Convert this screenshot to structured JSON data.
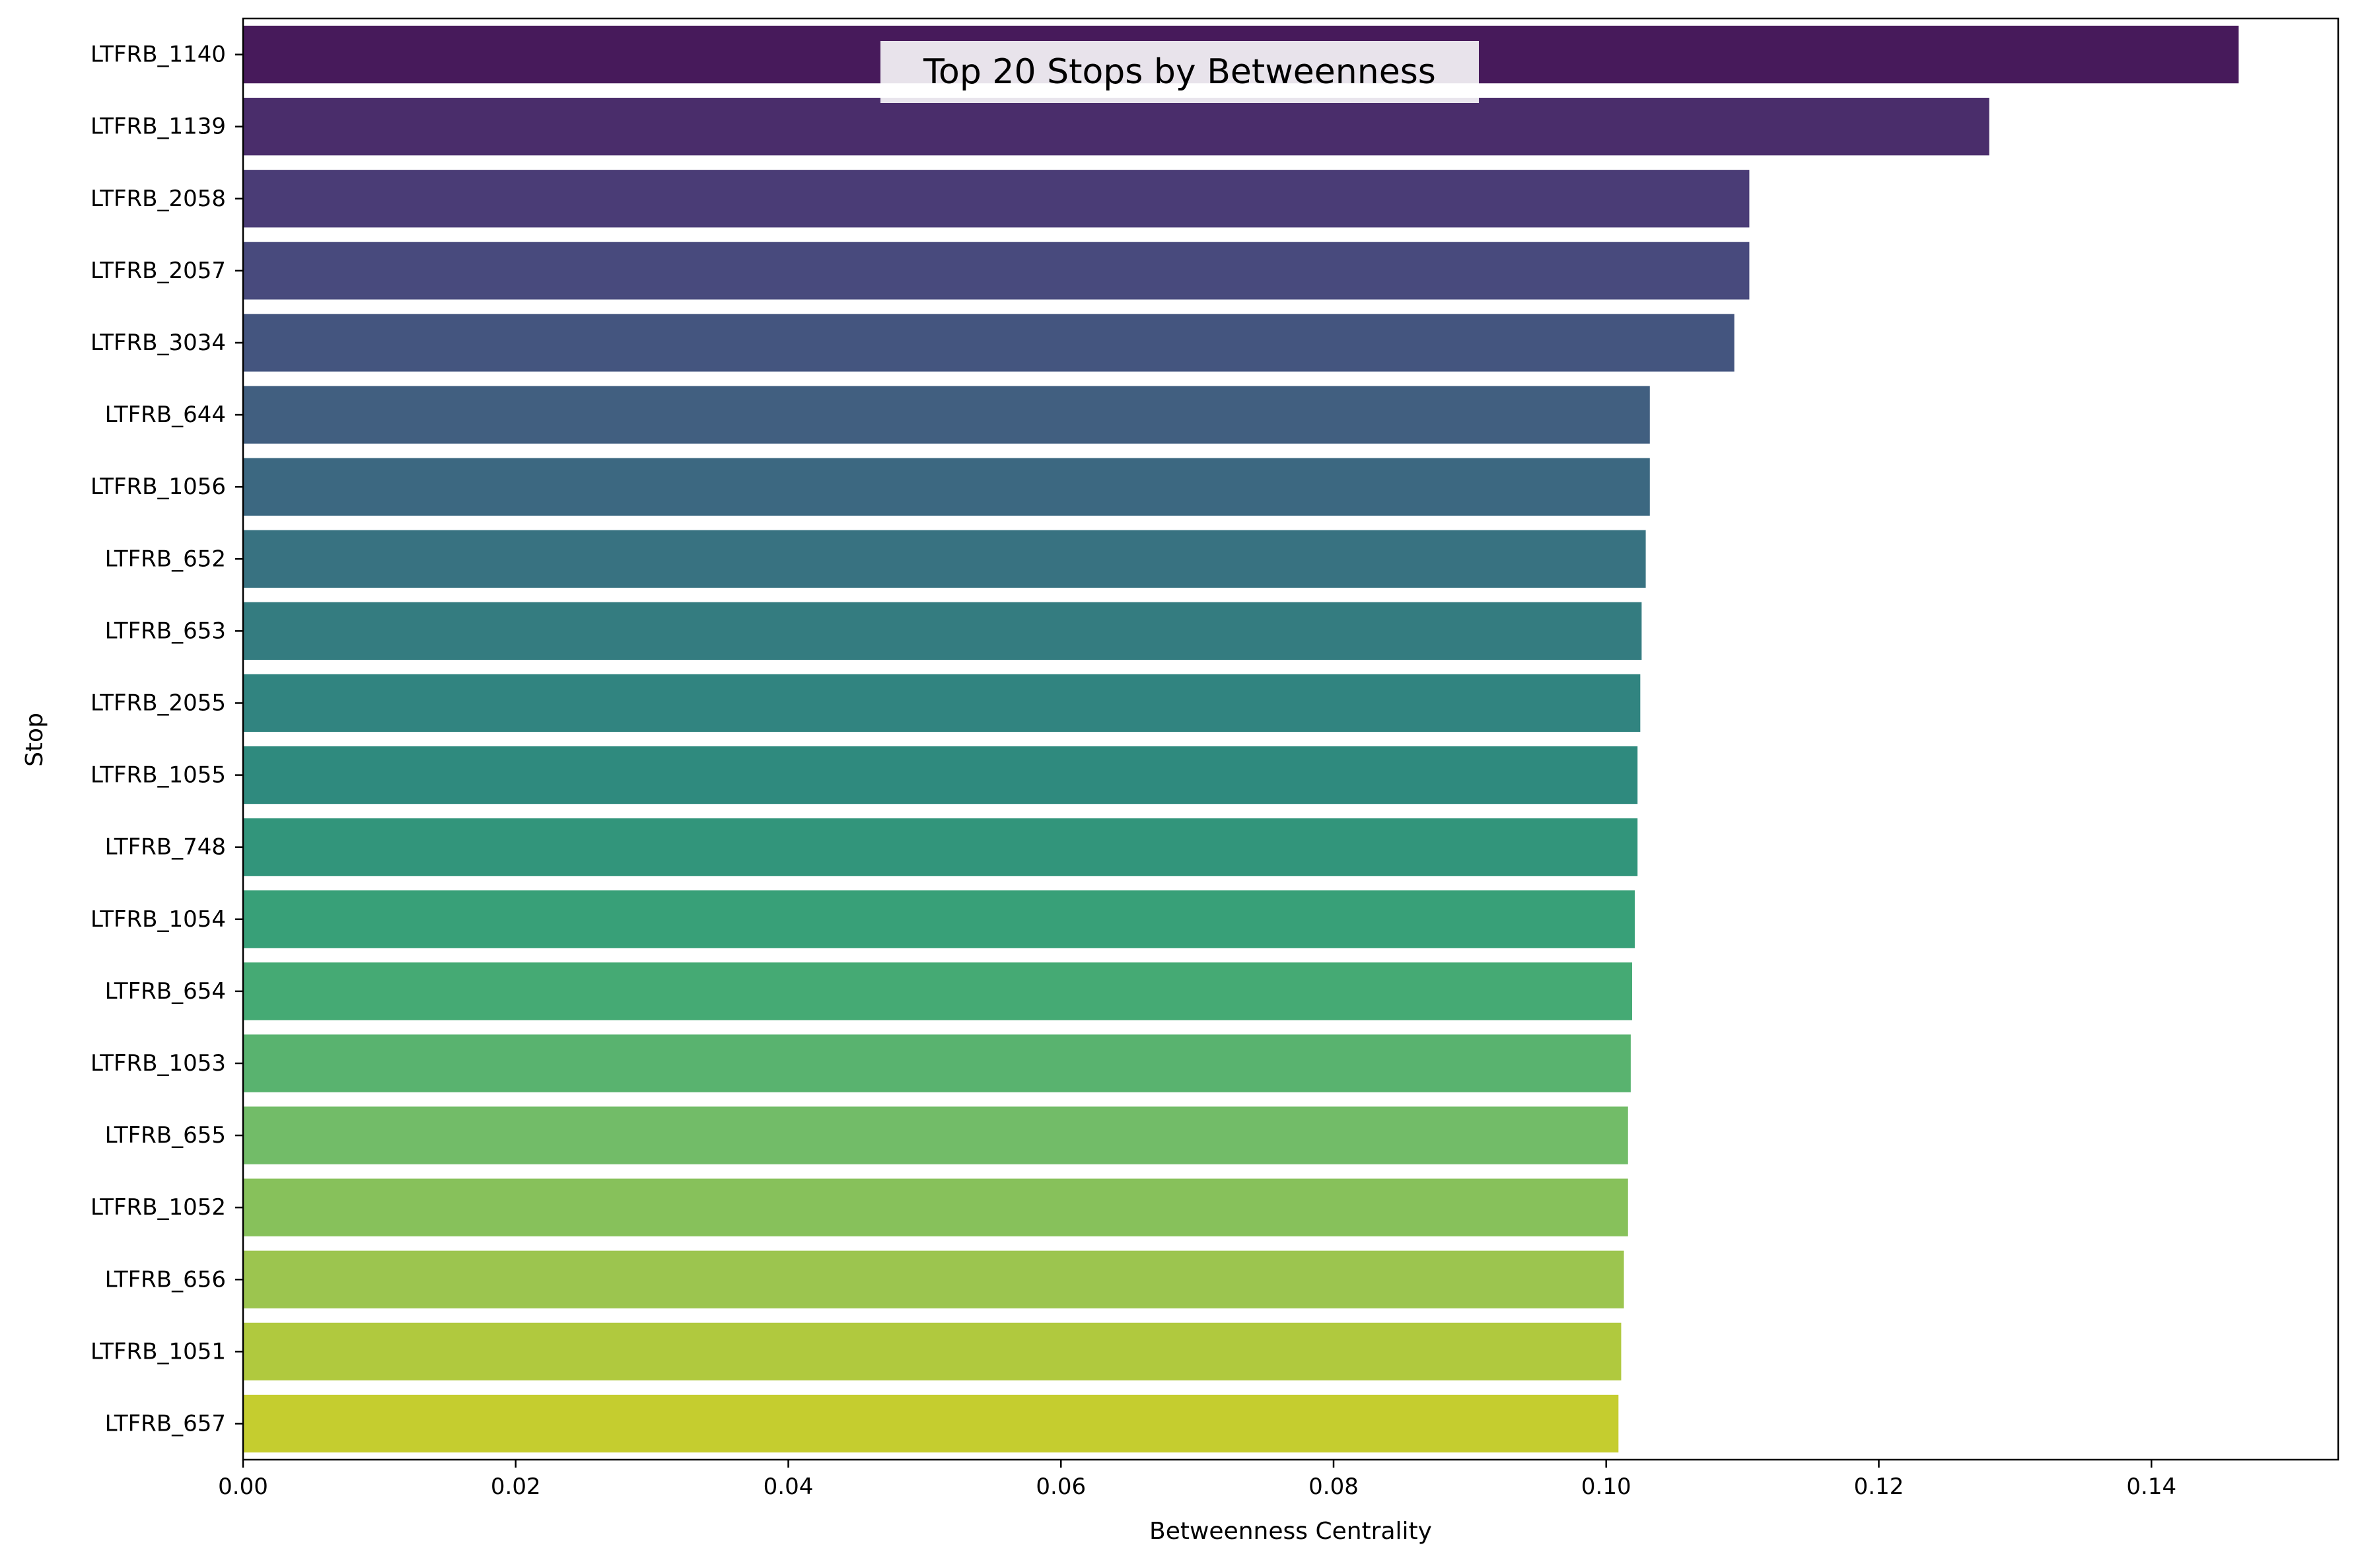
{
  "chart_data": {
    "type": "bar",
    "orientation": "horizontal",
    "title": "Top 20 Stops by Betweenness",
    "xlabel": "Betweenness Centrality",
    "ylabel": "Stop",
    "xlim": [
      0,
      0.1537
    ],
    "xticks": [
      "0.00",
      "0.02",
      "0.04",
      "0.06",
      "0.08",
      "0.10",
      "0.12",
      "0.14"
    ],
    "grid": false,
    "legend": "none",
    "palette": "viridis",
    "categories": [
      "LTFRB_1140",
      "LTFRB_1139",
      "LTFRB_2058",
      "LTFRB_2057",
      "LTFRB_3034",
      "LTFRB_644",
      "LTFRB_1056",
      "LTFRB_652",
      "LTFRB_653",
      "LTFRB_2055",
      "LTFRB_1055",
      "LTFRB_748",
      "LTFRB_1054",
      "LTFRB_654",
      "LTFRB_1053",
      "LTFRB_655",
      "LTFRB_1052",
      "LTFRB_656",
      "LTFRB_1051",
      "LTFRB_657"
    ],
    "values": [
      0.1464,
      0.1281,
      0.1105,
      0.1105,
      0.1094,
      0.1032,
      0.1032,
      0.1029,
      0.1026,
      0.1025,
      0.1023,
      0.1023,
      0.1021,
      0.1019,
      0.1018,
      0.1016,
      0.1016,
      0.1013,
      0.1011,
      0.1009
    ],
    "colors": [
      "#471a5b",
      "#4a2d6b",
      "#4a3c76",
      "#484a7d",
      "#44557f",
      "#415f80",
      "#3c6881",
      "#387281",
      "#347c80",
      "#318480",
      "#2f8a7e",
      "#32957b",
      "#38a078",
      "#45aa74",
      "#59b36f",
      "#72bc68",
      "#87c15b",
      "#9cc54f",
      "#b0c93e",
      "#c5cd2f"
    ]
  }
}
